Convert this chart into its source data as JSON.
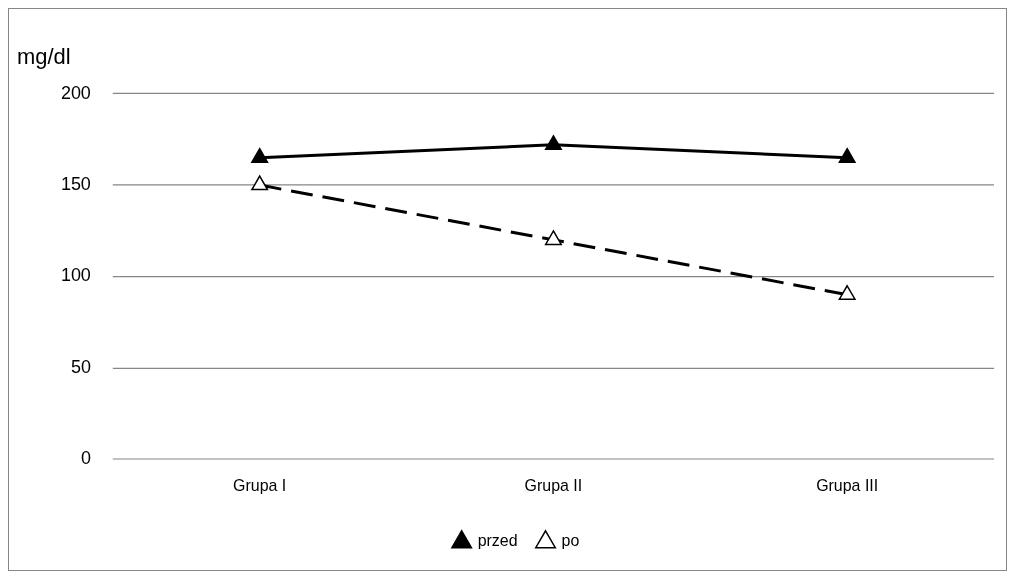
{
  "chart_data": {
    "type": "line",
    "ylabel": "mg/dl",
    "categories": [
      "Grupa I",
      "Grupa II",
      "Grupa III"
    ],
    "series": [
      {
        "name": "przed",
        "color": "#000000",
        "values": [
          165,
          172,
          165
        ],
        "marker": "triangle",
        "line_style": "solid"
      },
      {
        "name": "po",
        "color": "#000000",
        "values": [
          150,
          120,
          90
        ],
        "marker": "triangle",
        "line_style": "dashed"
      }
    ],
    "ylim": [
      0,
      200
    ],
    "yticks": [
      0,
      50,
      100,
      150,
      200
    ],
    "grid": "y",
    "legend": "bottom"
  }
}
